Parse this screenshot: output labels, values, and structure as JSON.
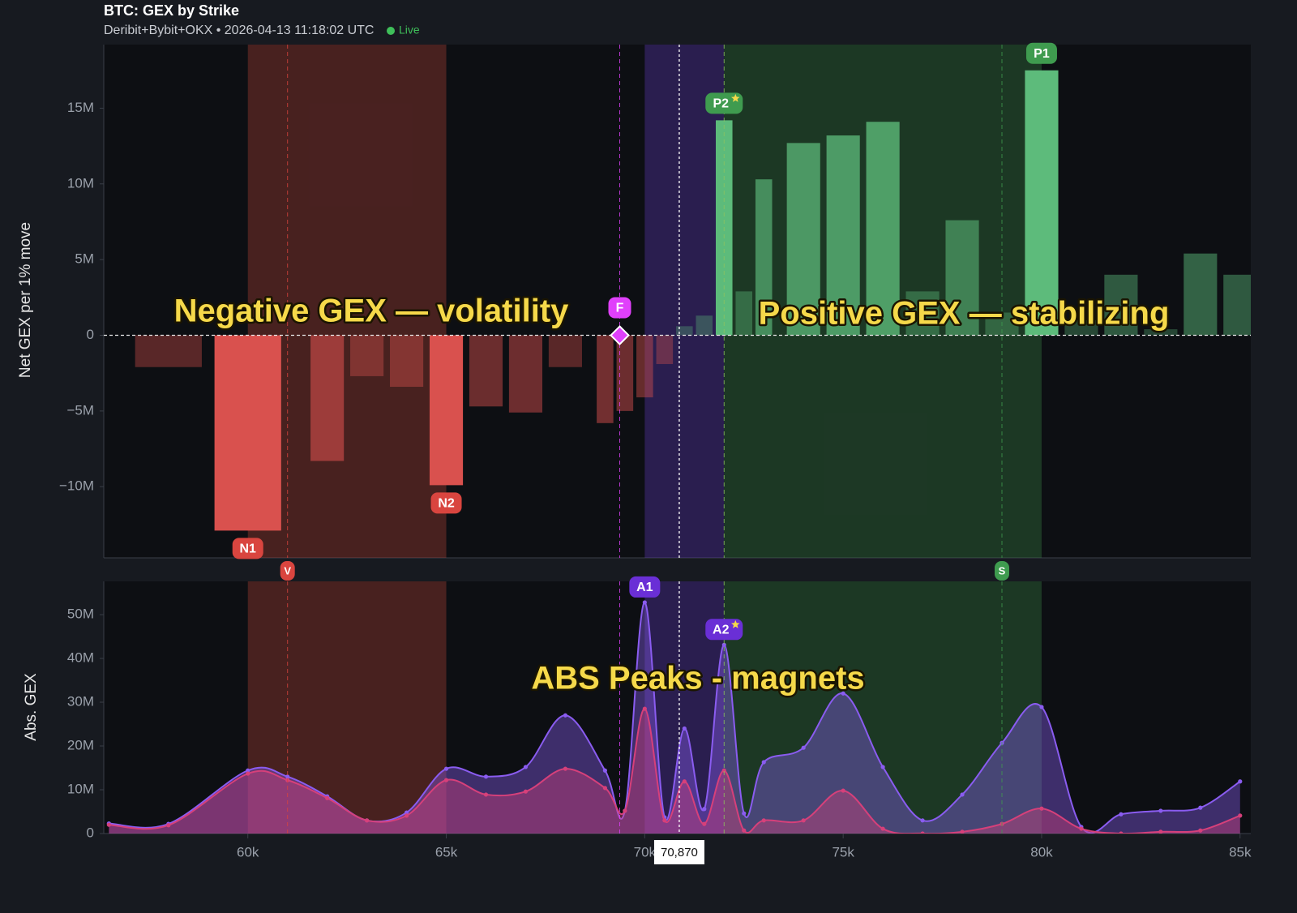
{
  "chart_data": [
    {
      "type": "bar",
      "title": "BTC: GEX by Strike",
      "subtitle": "Deribit+Bybit+OKX • 2026-04-13 11:18:02 UTC",
      "status": "Live",
      "y_label": "Net GEX per 1% move",
      "x": [
        58000,
        60000,
        62000,
        63000,
        64000,
        65000,
        66000,
        67000,
        68000,
        69000,
        69500,
        70000,
        70500,
        71000,
        71500,
        72000,
        72500,
        73000,
        74000,
        75000,
        76000,
        77000,
        78000,
        79000,
        80000,
        81000,
        82000,
        83000,
        84000,
        85000
      ],
      "values": [
        -2100000,
        -12900000,
        -8300000,
        -2700000,
        -3400000,
        -9900000,
        -4700000,
        -5100000,
        -2100000,
        -5800000,
        -5000000,
        -4100000,
        -1900000,
        600000,
        1300000,
        14200000,
        2900000,
        10300000,
        12700000,
        13200000,
        14100000,
        2900000,
        7600000,
        1500000,
        17500000,
        1000000,
        4000000,
        400000,
        5400000,
        4000000
      ],
      "positive_color": "#5dbb7b",
      "negative_color": "#d9514e",
      "xlim": [
        56370,
        85270
      ],
      "ylim": [
        -14700000,
        19200000
      ],
      "yticks": [
        {
          "value": -10000000,
          "label": "−10M"
        },
        {
          "value": -5000000,
          "label": "−5M"
        },
        0,
        {
          "value": 5000000,
          "label": "5M"
        },
        {
          "value": 10000000,
          "label": "10M"
        },
        {
          "value": 15000000,
          "label": "15M"
        }
      ],
      "zones": [
        {
          "x0": 60000,
          "x1": 65000,
          "color": "#c8463c"
        },
        {
          "x0": 70000,
          "x1": 72000,
          "color": "#6a3fd0"
        },
        {
          "x0": 72000,
          "x1": 80000,
          "color": "#3f8f4a"
        }
      ],
      "levels": [
        {
          "label": "V",
          "x": 61000,
          "color": "#d9453f",
          "anchor": "gap"
        },
        {
          "label": "S",
          "x": 79000,
          "color": "#3f9b4f",
          "anchor": "gap"
        },
        {
          "label": "F",
          "x": 69370,
          "color": "#e040fb",
          "anchor": "zero"
        },
        {
          "x": 72000,
          "color": "#8fc35f"
        }
      ],
      "markers": [
        {
          "label": "N1",
          "x": 60000,
          "color": "#d9453f"
        },
        {
          "label": "N2",
          "x": 65000,
          "color": "#d9453f"
        },
        {
          "label": "P1",
          "x": 80000,
          "color": "#3f9b4f"
        },
        {
          "label": "P2",
          "x": 72000,
          "color": "#3f9b4f",
          "starred": true
        }
      ],
      "annotations": [
        "Negative GEX — volatility",
        "Positive GEX — stabilizing"
      ]
    },
    {
      "type": "area",
      "y_label": "Abs. GEX",
      "x": [
        56500,
        58000,
        60000,
        61000,
        62000,
        63000,
        64000,
        65000,
        66000,
        67000,
        68000,
        69000,
        69500,
        70000,
        70500,
        71000,
        71500,
        72000,
        72500,
        73000,
        74000,
        75000,
        76000,
        77000,
        78000,
        79000,
        80000,
        81000,
        82000,
        83000,
        84000,
        85000
      ],
      "series": [
        {
          "color": "#8a5cf0",
          "values": [
            2300000,
            2200000,
            14400000,
            13000000,
            8500000,
            3000000,
            4800000,
            14800000,
            13000000,
            15200000,
            27000000,
            14400000,
            5200000,
            52800000,
            3700000,
            24000000,
            5600000,
            43100000,
            4600000,
            16300000,
            19600000,
            32000000,
            15200000,
            3000000,
            8900000,
            20700000,
            28900000,
            1500000,
            4400000,
            5200000,
            5900000,
            11900000
          ]
        },
        {
          "color": "#d6407a",
          "values": [
            2000000,
            1900000,
            13700000,
            12200000,
            8100000,
            3000000,
            4100000,
            12200000,
            8900000,
            9600000,
            14800000,
            10400000,
            5200000,
            28500000,
            3000000,
            11900000,
            2200000,
            14400000,
            700000,
            3000000,
            3000000,
            9800000,
            1100000,
            0,
            400000,
            2200000,
            5700000,
            1100000,
            0,
            400000,
            700000,
            4100000
          ]
        }
      ],
      "xlim": [
        56370,
        85270
      ],
      "ylim": [
        0,
        57600000
      ],
      "yticks": [
        0,
        {
          "value": 10000000,
          "label": "10M"
        },
        {
          "value": 20000000,
          "label": "20M"
        },
        {
          "value": 30000000,
          "label": "30M"
        },
        {
          "value": 40000000,
          "label": "40M"
        },
        {
          "value": 50000000,
          "label": "50M"
        }
      ],
      "xticks": [
        {
          "value": 60000,
          "label": "60k"
        },
        {
          "value": 65000,
          "label": "65k"
        },
        {
          "value": 70000,
          "label": "70k"
        },
        {
          "value": 75000,
          "label": "75k"
        },
        {
          "value": 80000,
          "label": "80k"
        },
        {
          "value": 85000,
          "label": "85k"
        }
      ],
      "cursor": {
        "value": 70870,
        "label": "70,870"
      },
      "markers": [
        {
          "label": "A1",
          "x": 70000,
          "color": "#6a2fd6"
        },
        {
          "label": "A2",
          "x": 72000,
          "color": "#6a2fd6",
          "starred": true
        }
      ],
      "annotations": [
        "ABS Peaks - magnets"
      ]
    }
  ]
}
